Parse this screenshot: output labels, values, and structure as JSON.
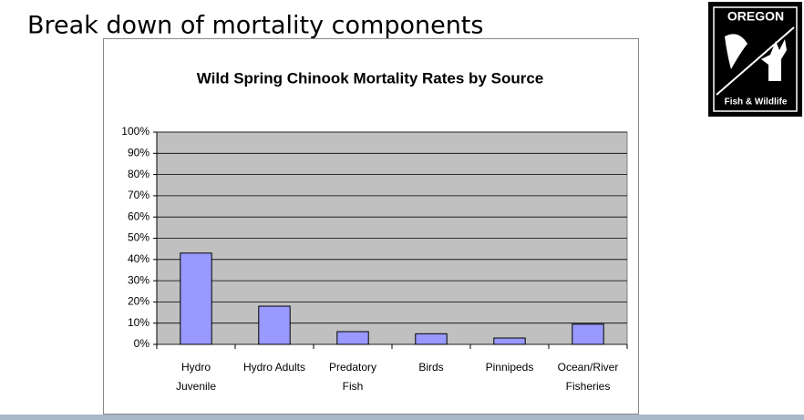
{
  "slide_title": "Break down of mortality components",
  "logo": {
    "top": "OREGON",
    "bottom": "Fish & Wildlife"
  },
  "chart_data": {
    "type": "bar",
    "title": "Wild Spring Chinook Mortality Rates by Source",
    "categories": [
      [
        "Hydro",
        "Juvenile"
      ],
      [
        "Hydro Adults"
      ],
      [
        "Predatory",
        "Fish"
      ],
      [
        "Birds"
      ],
      [
        "Pinnipeds"
      ],
      [
        "Ocean/River",
        "Fisheries"
      ]
    ],
    "values": [
      43,
      18,
      6,
      5,
      3,
      9.5
    ],
    "color": "#9999ff",
    "ylim": [
      0,
      100
    ],
    "yticks": [
      {
        "value": 0,
        "label": "0%"
      },
      {
        "value": 10,
        "label": "10%"
      },
      {
        "value": 20,
        "label": "20%"
      },
      {
        "value": 30,
        "label": "30%"
      },
      {
        "value": 40,
        "label": "40%"
      },
      {
        "value": 50,
        "label": "50%"
      },
      {
        "value": 60,
        "label": "60%"
      },
      {
        "value": 70,
        "label": "70%"
      },
      {
        "value": 80,
        "label": "80%"
      },
      {
        "value": 90,
        "label": "90%"
      },
      {
        "value": 100,
        "label": "100%"
      }
    ],
    "grid": true
  }
}
